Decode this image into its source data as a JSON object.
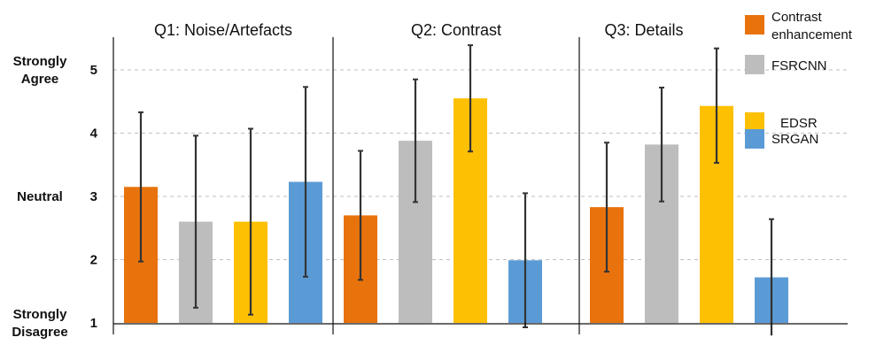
{
  "chart_data": {
    "type": "bar",
    "ylim": [
      1,
      5.5
    ],
    "y_ticks": [
      "1",
      "2",
      "3",
      "4",
      "5"
    ],
    "grid": "dashed horizontal",
    "legend_placement": "right",
    "scale_labels": [
      {
        "label": "Strongly Agree",
        "value": 5
      },
      {
        "label": "Neutral",
        "value": 3
      },
      {
        "label": "Strongly Disagree",
        "value": 1
      }
    ],
    "panels": [
      {
        "title": "Q1: Noise/Artefacts"
      },
      {
        "title": "Q2: Contrast"
      },
      {
        "title": "Q3: Details"
      }
    ],
    "series": [
      {
        "name": "Contrast enhancement",
        "color": "#E8730C",
        "values": [
          3.15,
          2.7,
          2.83
        ],
        "error_low": [
          1.97,
          1.68,
          1.81
        ],
        "error_high": [
          4.33,
          3.72,
          3.85
        ]
      },
      {
        "name": "FSRCNN",
        "color": "#BDBDBD",
        "values": [
          2.6,
          3.88,
          3.82
        ],
        "error_low": [
          1.24,
          2.91,
          2.92
        ],
        "error_high": [
          3.96,
          4.85,
          4.72
        ]
      },
      {
        "name": "EDSR",
        "color": "#FDC003",
        "values": [
          2.6,
          4.55,
          4.43
        ],
        "error_low": [
          1.13,
          3.71,
          3.53
        ],
        "error_high": [
          4.07,
          5.39,
          5.34
        ]
      },
      {
        "name": "SRGAN",
        "color": "#5B9BD5",
        "values": [
          3.23,
          1.99,
          1.72
        ],
        "error_low": [
          1.73,
          0.93,
          0.8
        ],
        "error_high": [
          4.73,
          3.05,
          2.64
        ]
      }
    ]
  },
  "legend": {
    "items": [
      {
        "lines": [
          "Contrast",
          "enhancement"
        ],
        "color": "#E8730C"
      },
      {
        "lines": [
          "FSRCNN"
        ],
        "color": "#BDBDBD"
      },
      {
        "lines": [
          "EDSR"
        ],
        "color": "#FDC003"
      },
      {
        "lines": [
          "SRGAN"
        ],
        "color": "#5B9BD5"
      }
    ]
  },
  "scale_label_lines": [
    {
      "lines": [
        "Strongly",
        "Agree"
      ]
    },
    {
      "lines": [
        "Neutral"
      ]
    },
    {
      "lines": [
        "Strongly",
        "Disagree"
      ]
    }
  ]
}
